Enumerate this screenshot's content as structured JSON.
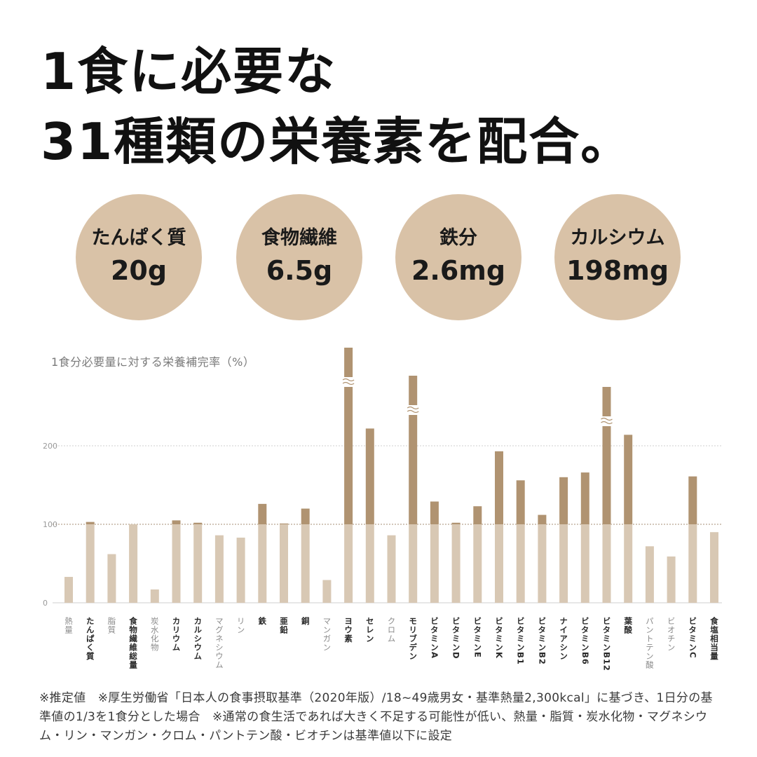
{
  "headline": {
    "line1": "1食に必要な",
    "line2": "31種類の栄養素を配合。"
  },
  "highlights": [
    {
      "label": "たんぱく質",
      "value": "20g"
    },
    {
      "label": "食物繊維",
      "value": "6.5g"
    },
    {
      "label": "鉄分",
      "value": "2.6mg"
    },
    {
      "label": "カルシウム",
      "value": "198mg"
    }
  ],
  "colors": {
    "circle_fill": "#d9c2a7",
    "bar_light": "#d8c8b4",
    "bar_dark": "#b09371",
    "reference_line": "#b8a58f",
    "gridline": "#cfcfcf"
  },
  "chart_data": {
    "type": "bar",
    "title": "1食分必要量に対する栄養補完率（%）",
    "yticks": [
      0,
      100,
      200
    ],
    "ylim": [
      0,
      320
    ],
    "reference_line": 100,
    "categories": [
      "熱量",
      "たんぱく質",
      "脂質",
      "食物繊維総量",
      "炭水化物",
      "カリウム",
      "カルシウム",
      "マグネシウム",
      "リン",
      "鉄",
      "亜鉛",
      "銅",
      "マンガン",
      "ヨウ素",
      "セレン",
      "クロム",
      "モリブデン",
      "ビタミンA",
      "ビタミンD",
      "ビタミンE",
      "ビタミンK",
      "ビタミンB1",
      "ビタミンB2",
      "ナイアシン",
      "ビタミンB6",
      "ビタミンB12",
      "葉酸",
      "パントテン酸",
      "ビオチン",
      "ビタミンC",
      "食塩相当量"
    ],
    "values": [
      33,
      103,
      62,
      100,
      17,
      105,
      102,
      86,
      83,
      126,
      101,
      120,
      29,
      325,
      222,
      86,
      290,
      129,
      102,
      123,
      193,
      156,
      112,
      160,
      166,
      276,
      214,
      72,
      59,
      161,
      90
    ],
    "axis_break": [
      "ヨウ素",
      "モリブデン",
      "ビタミンB12"
    ],
    "highlighted": [
      "たんぱく質",
      "食物繊維総量",
      "カリウム",
      "カルシウム",
      "鉄",
      "亜鉛",
      "銅",
      "ヨウ素",
      "セレン",
      "モリブデン",
      "ビタミンA",
      "ビタミンD",
      "ビタミンE",
      "ビタミンK",
      "ビタミンB1",
      "ビタミンB2",
      "ナイアシン",
      "ビタミンB6",
      "ビタミンB12",
      "葉酸",
      "ビタミンC",
      "食塩相当量"
    ]
  },
  "footnote": "※推定値　※厚生労働省「日本人の食事摂取基準（2020年版）/18~49歳男女・基準熱量2,300kcal」に基づき、1日分の基準値の1/3を1食分とした場合　※通常の食生活であれば大きく不足する可能性が低い、熱量・脂質・炭水化物・マグネシウム・リン・マンガン・クロム・パントテン酸・ビオチンは基準値以下に設定"
}
